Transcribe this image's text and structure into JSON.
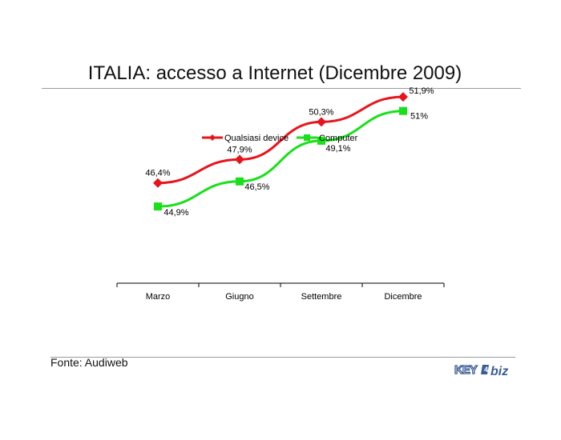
{
  "slide": {
    "title": "ITALIA: accesso a Internet (Dicembre 2009)",
    "source": "Fonte: Audiweb",
    "logo_text": "KEY4biz"
  },
  "chart_data": {
    "type": "line",
    "categories": [
      "Marzo",
      "Giugno",
      "Settembre",
      "Dicembre"
    ],
    "series": [
      {
        "name": "Qualsiasi device",
        "values": [
          46.4,
          47.9,
          50.3,
          51.9
        ],
        "labels": [
          "46,4%",
          "47,9%",
          "50,3%",
          "51,9%"
        ],
        "color": "#e8141c",
        "marker": "diamond"
      },
      {
        "name": "Computer",
        "values": [
          44.9,
          46.5,
          49.1,
          51.0
        ],
        "labels": [
          "44,9%",
          "46,5%",
          "49,1%",
          "51%"
        ],
        "color": "#19e01a",
        "marker": "square"
      }
    ],
    "title": "",
    "xlabel": "",
    "ylabel": "",
    "ylim": [
      40,
      54
    ],
    "grid": false,
    "legend": "top"
  }
}
